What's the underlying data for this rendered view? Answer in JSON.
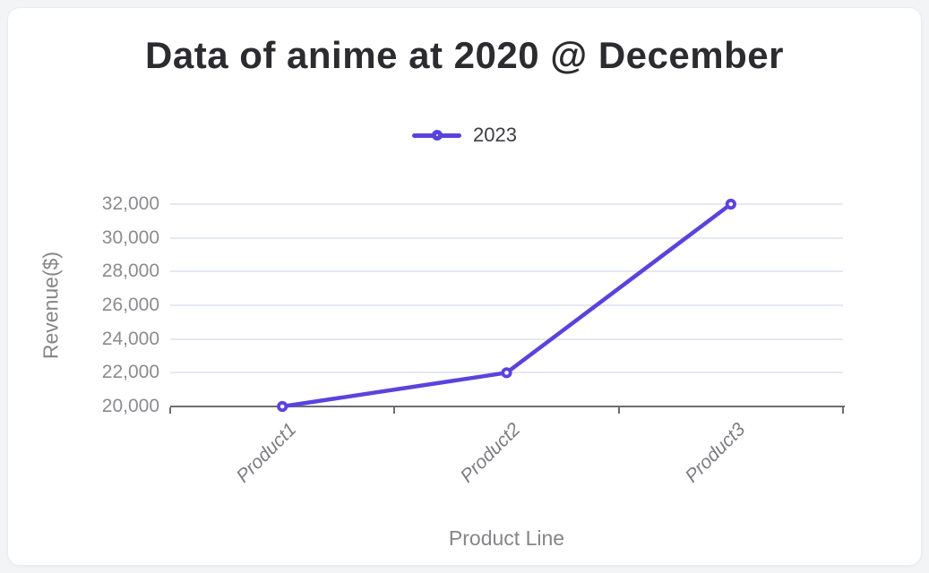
{
  "page": {
    "background_color": "#f3f4f6",
    "card_color": "#ffffff"
  },
  "chart_data": {
    "type": "line",
    "title": "Data of anime at 2020 @ December",
    "xlabel": "Product Line",
    "ylabel": "Revenue($)",
    "categories": [
      "Product1",
      "Product2",
      "Product3"
    ],
    "series": [
      {
        "name": "2023",
        "values": [
          20000,
          22000,
          32000
        ]
      }
    ],
    "ylim": [
      20000,
      32000
    ],
    "ytick_step": 2000,
    "yticks": [
      {
        "value": 20000,
        "label": "20,000"
      },
      {
        "value": 22000,
        "label": "22,000"
      },
      {
        "value": 24000,
        "label": "24,000"
      },
      {
        "value": 26000,
        "label": "26,000"
      },
      {
        "value": 28000,
        "label": "28,000"
      },
      {
        "value": 30000,
        "label": "30,000"
      },
      {
        "value": 32000,
        "label": "32,000"
      }
    ],
    "grid": true,
    "legend_position": "top",
    "marker_style": "hollow-circle",
    "colors": {
      "series": "#5a43dd",
      "grid": "#e6e8f2",
      "axis": "#6d6d76",
      "tick_text": "#8b8b90",
      "axis_title_text": "#85858a",
      "title_text": "#2b2b30",
      "legend_text": "#3d3d43",
      "marker_fill": "#ffffff"
    }
  }
}
